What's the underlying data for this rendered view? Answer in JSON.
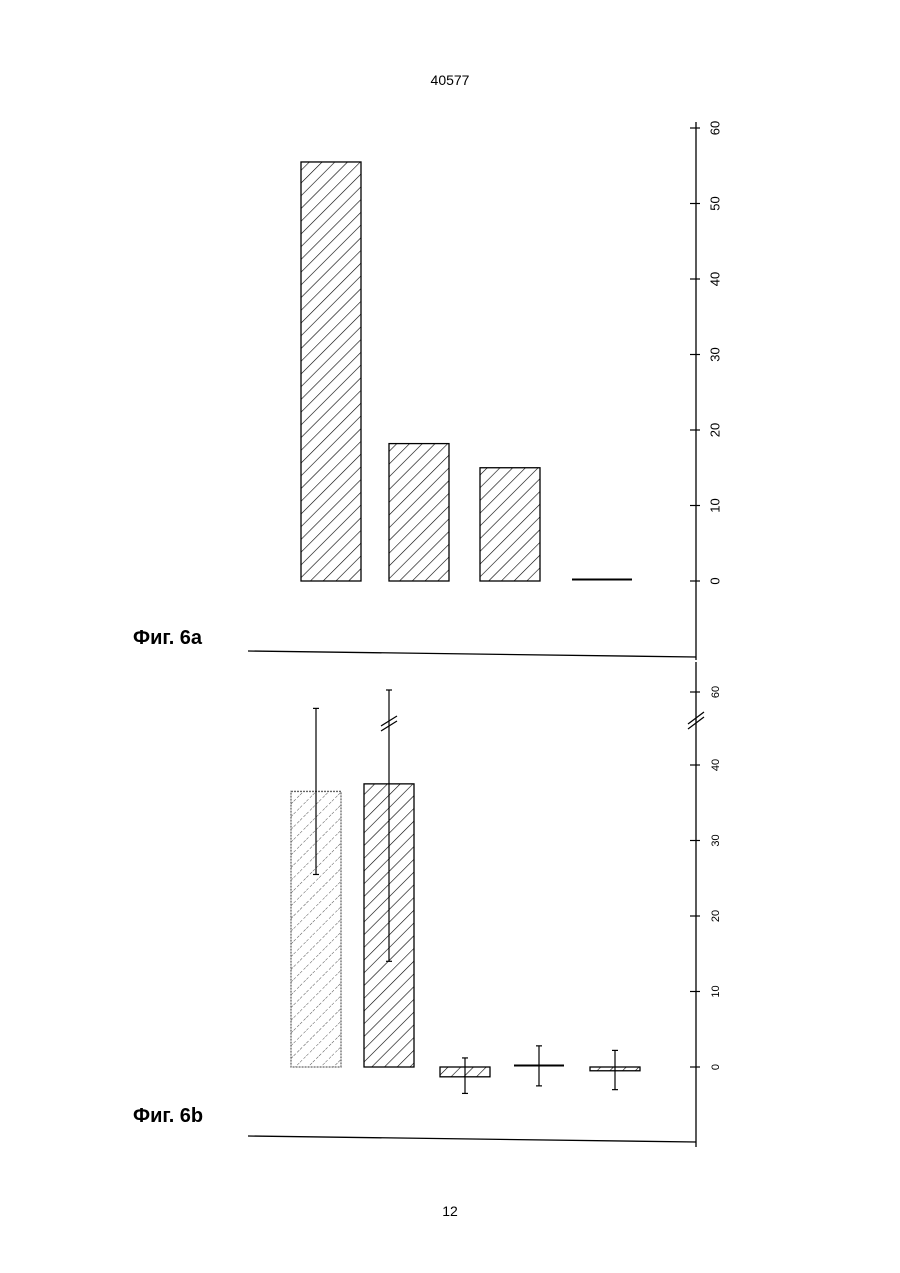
{
  "page": {
    "header_number": "40577",
    "page_number": "12"
  },
  "chart_data": [
    {
      "id": "fig-6a",
      "label": "Фиг. 6a",
      "type": "bar",
      "orientation": "rotated-90",
      "axis_ticks": [
        "0",
        "10",
        "20",
        "30",
        "40",
        "50",
        "60"
      ],
      "ylim": [
        -10,
        60
      ],
      "values": [
        55.5,
        18.2,
        15.0,
        0.2
      ],
      "hatched": [
        true,
        true,
        true,
        false
      ],
      "error_bars": [],
      "axis_break": false
    },
    {
      "id": "fig-6b",
      "label": "Фиг. 6b",
      "type": "bar",
      "orientation": "rotated-90",
      "axis_ticks": [
        "0",
        "10",
        "20",
        "30",
        "40",
        "60"
      ],
      "ylim": [
        -10,
        60
      ],
      "values": [
        36.5,
        37.5,
        -1.3,
        0.2,
        -0.5
      ],
      "hatched": [
        true,
        true,
        true,
        false,
        true
      ],
      "error_bars": [
        [
          25.5,
          47.5
        ],
        [
          14.0,
          60
        ],
        [
          -3.5,
          1.2
        ],
        [
          -2.5,
          2.8
        ],
        [
          -3.0,
          2.2
        ]
      ],
      "axis_break": true
    }
  ]
}
